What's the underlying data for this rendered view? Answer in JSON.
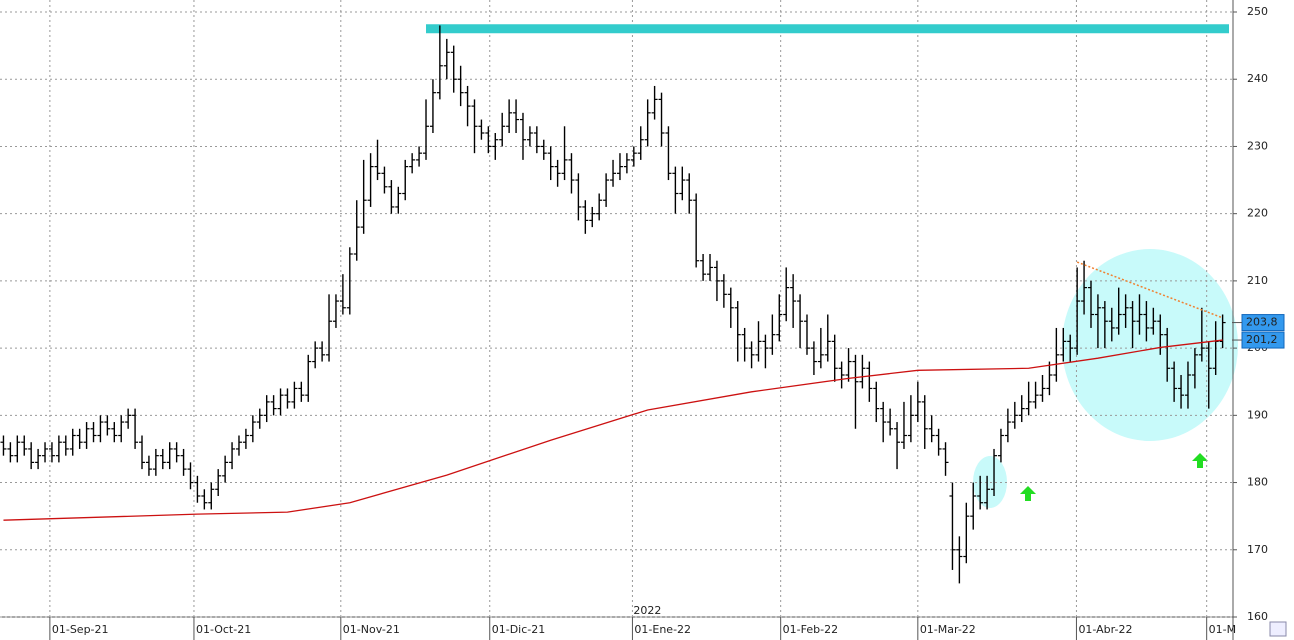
{
  "chart_data": {
    "type": "ohlc",
    "xlim": [
      -0.5,
      177.5
    ],
    "ylim": [
      160,
      250
    ],
    "yticks": [
      160,
      170,
      180,
      190,
      200,
      210,
      220,
      230,
      240,
      250
    ],
    "xticks": [
      {
        "value": 6.7,
        "label": "01-Sep-21"
      },
      {
        "value": 27.5,
        "label": "01-Oct-21"
      },
      {
        "value": 48.7,
        "label": "01-Nov-21"
      },
      {
        "value": 70.2,
        "label": "01-Dic-21"
      },
      {
        "value": 90.8,
        "label": "01-Ene-22"
      },
      {
        "value": 112.2,
        "label": "01-Feb-22"
      },
      {
        "value": 132.0,
        "label": "01-Mar-22"
      },
      {
        "value": 154.9,
        "label": "01-Abr-22"
      },
      {
        "value": 173.7,
        "label": "01-M"
      }
    ],
    "year_label": {
      "value": 90.8,
      "label": "2022"
    },
    "grid": true,
    "color": "#000000",
    "ohlc": [
      [
        186,
        187,
        184,
        185
      ],
      [
        185,
        186,
        183,
        184
      ],
      [
        184,
        187,
        183,
        186
      ],
      [
        186,
        187,
        184,
        185
      ],
      [
        185,
        186,
        182,
        183
      ],
      [
        183,
        185,
        182,
        184
      ],
      [
        184,
        186,
        183,
        185
      ],
      [
        185,
        186,
        183,
        184
      ],
      [
        184,
        187,
        183,
        186
      ],
      [
        186,
        187,
        184,
        185
      ],
      [
        185,
        188,
        184,
        187
      ],
      [
        187,
        188,
        185,
        186
      ],
      [
        186,
        189,
        185,
        188
      ],
      [
        188,
        189,
        186,
        187
      ],
      [
        187,
        190,
        186,
        189
      ],
      [
        189,
        190,
        187,
        188
      ],
      [
        188,
        189,
        186,
        187
      ],
      [
        187,
        190,
        186,
        189
      ],
      [
        189,
        191,
        188,
        190
      ],
      [
        190,
        191,
        185,
        186
      ],
      [
        186,
        187,
        182,
        183
      ],
      [
        183,
        184,
        181,
        182
      ],
      [
        182,
        185,
        181,
        184
      ],
      [
        184,
        185,
        182,
        183
      ],
      [
        183,
        186,
        182,
        185
      ],
      [
        185,
        186,
        183,
        184
      ],
      [
        184,
        185,
        181,
        182
      ],
      [
        182,
        183,
        179,
        180
      ],
      [
        180,
        181,
        177,
        178
      ],
      [
        178,
        179,
        176,
        177
      ],
      [
        177,
        180,
        176,
        179
      ],
      [
        179,
        182,
        178,
        181
      ],
      [
        181,
        184,
        180,
        183
      ],
      [
        183,
        186,
        182,
        185
      ],
      [
        185,
        187,
        184,
        186
      ],
      [
        186,
        188,
        185,
        187
      ],
      [
        187,
        190,
        186,
        189
      ],
      [
        189,
        191,
        188,
        190
      ],
      [
        190,
        193,
        189,
        192
      ],
      [
        192,
        193,
        190,
        191
      ],
      [
        191,
        194,
        190,
        193
      ],
      [
        193,
        194,
        191,
        192
      ],
      [
        192,
        195,
        191,
        194
      ],
      [
        194,
        195,
        192,
        193
      ],
      [
        193,
        199,
        192,
        198
      ],
      [
        198,
        201,
        197,
        200
      ],
      [
        200,
        201,
        198,
        199
      ],
      [
        199,
        208,
        198,
        204
      ],
      [
        204,
        208,
        203,
        207
      ],
      [
        207,
        211,
        205,
        206
      ],
      [
        206,
        215,
        205,
        214
      ],
      [
        214,
        222,
        213,
        218
      ],
      [
        218,
        228,
        217,
        222
      ],
      [
        222,
        229,
        221,
        227
      ],
      [
        227,
        231,
        225,
        226
      ],
      [
        226,
        227,
        223,
        224
      ],
      [
        224,
        225,
        220,
        221
      ],
      [
        221,
        224,
        220,
        223
      ],
      [
        223,
        228,
        222,
        227
      ],
      [
        227,
        229,
        226,
        228
      ],
      [
        228,
        230,
        227,
        229
      ],
      [
        229,
        237,
        228,
        233
      ],
      [
        233,
        240,
        232,
        238
      ],
      [
        238,
        248,
        237,
        242
      ],
      [
        242,
        246,
        240,
        244
      ],
      [
        244,
        245,
        238,
        240
      ],
      [
        240,
        242,
        236,
        238
      ],
      [
        238,
        239,
        233,
        236
      ],
      [
        236,
        237,
        229,
        233
      ],
      [
        233,
        234,
        231,
        232
      ],
      [
        232,
        233,
        229,
        230
      ],
      [
        230,
        232,
        228,
        231
      ],
      [
        231,
        235,
        230,
        233
      ],
      [
        233,
        237,
        232,
        235
      ],
      [
        235,
        237,
        232,
        234
      ],
      [
        234,
        235,
        228,
        231
      ],
      [
        231,
        233,
        230,
        232
      ],
      [
        232,
        233,
        229,
        230
      ],
      [
        230,
        231,
        228,
        229
      ],
      [
        229,
        230,
        225,
        227
      ],
      [
        227,
        228,
        224,
        226
      ],
      [
        226,
        233,
        225,
        228
      ],
      [
        228,
        229,
        223,
        225
      ],
      [
        225,
        226,
        219,
        221
      ],
      [
        221,
        222,
        217,
        219
      ],
      [
        219,
        221,
        218,
        220
      ],
      [
        220,
        223,
        219,
        222
      ],
      [
        222,
        226,
        221,
        225
      ],
      [
        225,
        228,
        224,
        226
      ],
      [
        226,
        229,
        225,
        227
      ],
      [
        227,
        229,
        226,
        228
      ],
      [
        228,
        230,
        227,
        229
      ],
      [
        229,
        233,
        228,
        231
      ],
      [
        231,
        237,
        230,
        235
      ],
      [
        235,
        239,
        234,
        237
      ],
      [
        237,
        238,
        230,
        232
      ],
      [
        232,
        233,
        225,
        226
      ],
      [
        226,
        227,
        220,
        223
      ],
      [
        223,
        227,
        222,
        225
      ],
      [
        225,
        226,
        220,
        222
      ],
      [
        222,
        223,
        212,
        213
      ],
      [
        213,
        214,
        210,
        211
      ],
      [
        211,
        214,
        210,
        212
      ],
      [
        212,
        213,
        207,
        210
      ],
      [
        210,
        211,
        206,
        208
      ],
      [
        208,
        209,
        203,
        206
      ],
      [
        206,
        207,
        198,
        202
      ],
      [
        202,
        203,
        198,
        200
      ],
      [
        200,
        201,
        197,
        199
      ],
      [
        199,
        204,
        198,
        201
      ],
      [
        201,
        202,
        197,
        200
      ],
      [
        200,
        205,
        199,
        202
      ],
      [
        202,
        208,
        201,
        205
      ],
      [
        205,
        212,
        204,
        209
      ],
      [
        209,
        211,
        203,
        207
      ],
      [
        207,
        208,
        200,
        204
      ],
      [
        204,
        205,
        199,
        200
      ],
      [
        200,
        201,
        196,
        198
      ],
      [
        198,
        203,
        197,
        199
      ],
      [
        199,
        205,
        198,
        201
      ],
      [
        201,
        202,
        195,
        197
      ],
      [
        197,
        198,
        194,
        196
      ],
      [
        196,
        200,
        195,
        198
      ],
      [
        198,
        199,
        188,
        195
      ],
      [
        195,
        199,
        194,
        197
      ],
      [
        197,
        198,
        192,
        194
      ],
      [
        194,
        195,
        189,
        191
      ],
      [
        191,
        192,
        186,
        189
      ],
      [
        189,
        191,
        187,
        188
      ],
      [
        188,
        189,
        182,
        186
      ],
      [
        186,
        192,
        185,
        187
      ],
      [
        187,
        193,
        186,
        190
      ],
      [
        190,
        195,
        189,
        192
      ],
      [
        192,
        193,
        185,
        188
      ],
      [
        188,
        190,
        186,
        187
      ],
      [
        187,
        188,
        184,
        185
      ],
      [
        185,
        186,
        181,
        183
      ],
      [
        178,
        180,
        167,
        170
      ],
      [
        170,
        172,
        165,
        169
      ],
      [
        169,
        177,
        168,
        175
      ],
      [
        175,
        180,
        173,
        178
      ],
      [
        178,
        181,
        176,
        177
      ],
      [
        177,
        181,
        176,
        179
      ],
      [
        179,
        185,
        178,
        184
      ],
      [
        184,
        188,
        183,
        187
      ],
      [
        187,
        191,
        186,
        189
      ],
      [
        189,
        192,
        188,
        190
      ],
      [
        190,
        193,
        189,
        191
      ],
      [
        191,
        195,
        190,
        192
      ],
      [
        192,
        195,
        191,
        193
      ],
      [
        193,
        196,
        192,
        194
      ],
      [
        194,
        198,
        193,
        196
      ],
      [
        196,
        203,
        195,
        199
      ],
      [
        199,
        203,
        198,
        201
      ],
      [
        201,
        202,
        198,
        200
      ],
      [
        200,
        212,
        199,
        207
      ],
      [
        207,
        213,
        205,
        209
      ],
      [
        209,
        210,
        203,
        205
      ],
      [
        205,
        208,
        200,
        206
      ],
      [
        206,
        207,
        200,
        204
      ],
      [
        204,
        206,
        201,
        203
      ],
      [
        203,
        209,
        202,
        205
      ],
      [
        205,
        208,
        203,
        206
      ],
      [
        206,
        207,
        200,
        204
      ],
      [
        204,
        208,
        202,
        205
      ],
      [
        205,
        207,
        201,
        203
      ],
      [
        203,
        206,
        202,
        204
      ],
      [
        204,
        205,
        199,
        202
      ],
      [
        202,
        203,
        195,
        197
      ],
      [
        197,
        198,
        192,
        194
      ],
      [
        194,
        196,
        191,
        193
      ],
      [
        193,
        198,
        191,
        196
      ],
      [
        196,
        200,
        194,
        199
      ],
      [
        199,
        206,
        198,
        200
      ],
      [
        200,
        201,
        191,
        197
      ],
      [
        197,
        204,
        196,
        201
      ],
      [
        201,
        205,
        200,
        203.8
      ]
    ],
    "last_label": {
      "value": 203.8,
      "label": "203,8"
    },
    "moving_average": {
      "color": "#cc1111",
      "x": [
        0,
        28,
        41,
        50,
        64,
        79,
        93,
        108,
        122,
        132,
        148,
        158,
        167,
        176
      ],
      "values": [
        174.4,
        175.3,
        175.6,
        177.0,
        181.1,
        186.3,
        190.8,
        193.5,
        195.5,
        196.7,
        197.0,
        198.5,
        200.1,
        201.2
      ],
      "last_label": {
        "value": 201.2,
        "label": "201,2"
      }
    },
    "resistance": {
      "color": "#33cccc",
      "value": 247.5,
      "x": [
        61,
        177
      ]
    },
    "trendline": {
      "color": "#f08030",
      "x": [
        155,
        176
      ],
      "values": [
        212.8,
        204.5
      ]
    }
  }
}
